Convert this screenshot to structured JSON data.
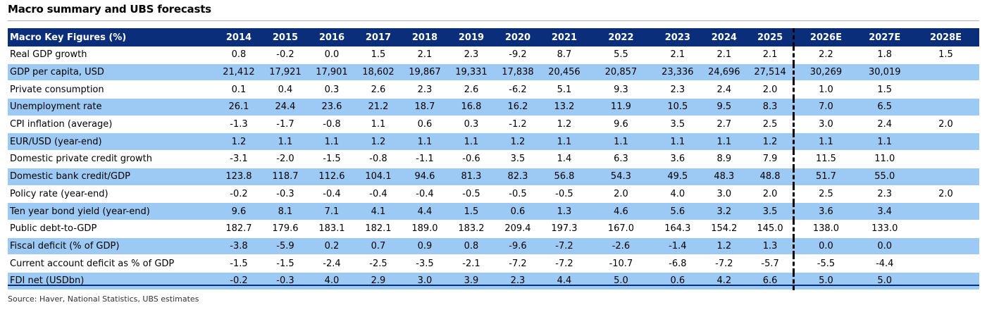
{
  "page_title": "Macro summary and UBS forecasts",
  "source": "Source: Haver, National Statistics, UBS estimates",
  "colors": {
    "header_bg": "#0b2e7a",
    "header_text": "#ffffff",
    "shaded_row": "#9dc9f5",
    "plain_row": "#ffffff"
  },
  "chart_data": {
    "type": "table",
    "title": "Macro summary and UBS forecasts",
    "columns": [
      "Macro Key Figures (%)",
      "2014",
      "2015",
      "2016",
      "2017",
      "2018",
      "2019",
      "2020",
      "2021",
      "2022",
      "2023",
      "2024",
      "2025",
      "2026E",
      "2027E",
      "2028E"
    ],
    "forecast_start_column": "2026E",
    "rows": [
      {
        "label": "Real GDP growth",
        "values": [
          "0.8",
          "-0.2",
          "0.0",
          "1.5",
          "2.1",
          "2.3",
          "-9.2",
          "8.7",
          "5.5",
          "2.1",
          "2.1",
          "2.1",
          "2.2",
          "1.8",
          "1.5"
        ]
      },
      {
        "label": "GDP per capita, USD",
        "values": [
          "21,412",
          "17,921",
          "17,901",
          "18,602",
          "19,867",
          "19,331",
          "17,838",
          "20,456",
          "20,857",
          "23,336",
          "24,696",
          "27,514",
          "30,269",
          "30,019",
          ""
        ]
      },
      {
        "label": "Private consumption",
        "values": [
          "0.1",
          "0.4",
          "0.3",
          "2.6",
          "2.3",
          "2.6",
          "-6.2",
          "5.1",
          "9.3",
          "2.3",
          "2.4",
          "2.0",
          "1.0",
          "1.5",
          ""
        ]
      },
      {
        "label": "Unemployment rate",
        "values": [
          "26.1",
          "24.4",
          "23.6",
          "21.2",
          "18.7",
          "16.8",
          "16.2",
          "13.2",
          "11.9",
          "10.5",
          "9.5",
          "8.3",
          "7.0",
          "6.5",
          ""
        ]
      },
      {
        "label": "CPI inflation (average)",
        "values": [
          "-1.3",
          "-1.7",
          "-0.8",
          "1.1",
          "0.6",
          "0.3",
          "-1.2",
          "1.2",
          "9.6",
          "3.5",
          "2.7",
          "2.5",
          "3.0",
          "2.4",
          "2.0"
        ]
      },
      {
        "label": "EUR/USD (year-end)",
        "values": [
          "1.2",
          "1.1",
          "1.1",
          "1.2",
          "1.1",
          "1.1",
          "1.2",
          "1.1",
          "1.1",
          "1.1",
          "1.1",
          "1.2",
          "1.1",
          "1.1",
          ""
        ]
      },
      {
        "label": "Domestic private credit growth",
        "values": [
          "-3.1",
          "-2.0",
          "-1.5",
          "-0.8",
          "-1.1",
          "-0.6",
          "3.5",
          "1.4",
          "6.3",
          "3.6",
          "8.9",
          "7.9",
          "11.5",
          "11.0",
          ""
        ]
      },
      {
        "label": "Domestic bank credit/GDP",
        "values": [
          "123.8",
          "118.7",
          "112.6",
          "104.1",
          "94.6",
          "81.3",
          "82.3",
          "56.8",
          "54.3",
          "49.5",
          "48.3",
          "48.8",
          "51.7",
          "55.0",
          ""
        ]
      },
      {
        "label": "Policy rate (year-end)",
        "values": [
          "-0.2",
          "-0.3",
          "-0.4",
          "-0.4",
          "-0.4",
          "-0.5",
          "-0.5",
          "-0.5",
          "2.0",
          "4.0",
          "3.0",
          "2.0",
          "2.5",
          "2.3",
          "2.0"
        ]
      },
      {
        "label": "Ten year bond yield (year-end)",
        "values": [
          "9.6",
          "8.1",
          "7.1",
          "4.1",
          "4.4",
          "1.5",
          "0.6",
          "1.3",
          "4.6",
          "5.6",
          "3.2",
          "3.5",
          "3.6",
          "3.4",
          ""
        ]
      },
      {
        "label": "Public debt-to-GDP",
        "values": [
          "182.7",
          "179.6",
          "183.1",
          "182.1",
          "189.0",
          "183.2",
          "209.4",
          "197.3",
          "167.0",
          "164.3",
          "154.2",
          "145.0",
          "138.0",
          "133.0",
          ""
        ]
      },
      {
        "label": "Fiscal deficit (% of GDP)",
        "values": [
          "-3.8",
          "-5.9",
          "0.2",
          "0.7",
          "0.9",
          "0.8",
          "-9.6",
          "-7.2",
          "-2.6",
          "-1.4",
          "1.2",
          "1.3",
          "0.0",
          "0.0",
          ""
        ]
      },
      {
        "label": "Current account deficit as % of GDP",
        "values": [
          "-1.5",
          "-1.5",
          "-2.4",
          "-2.5",
          "-3.5",
          "-2.1",
          "-7.2",
          "-7.2",
          "-10.7",
          "-6.8",
          "-7.2",
          "-5.7",
          "-5.5",
          "-4.4",
          ""
        ]
      },
      {
        "label": "FDI net (USDbn)",
        "values": [
          "-0.2",
          "-0.3",
          "4.0",
          "2.9",
          "3.0",
          "3.9",
          "2.3",
          "4.4",
          "5.0",
          "0.6",
          "4.2",
          "6.6",
          "5.0",
          "5.0",
          ""
        ]
      }
    ]
  }
}
